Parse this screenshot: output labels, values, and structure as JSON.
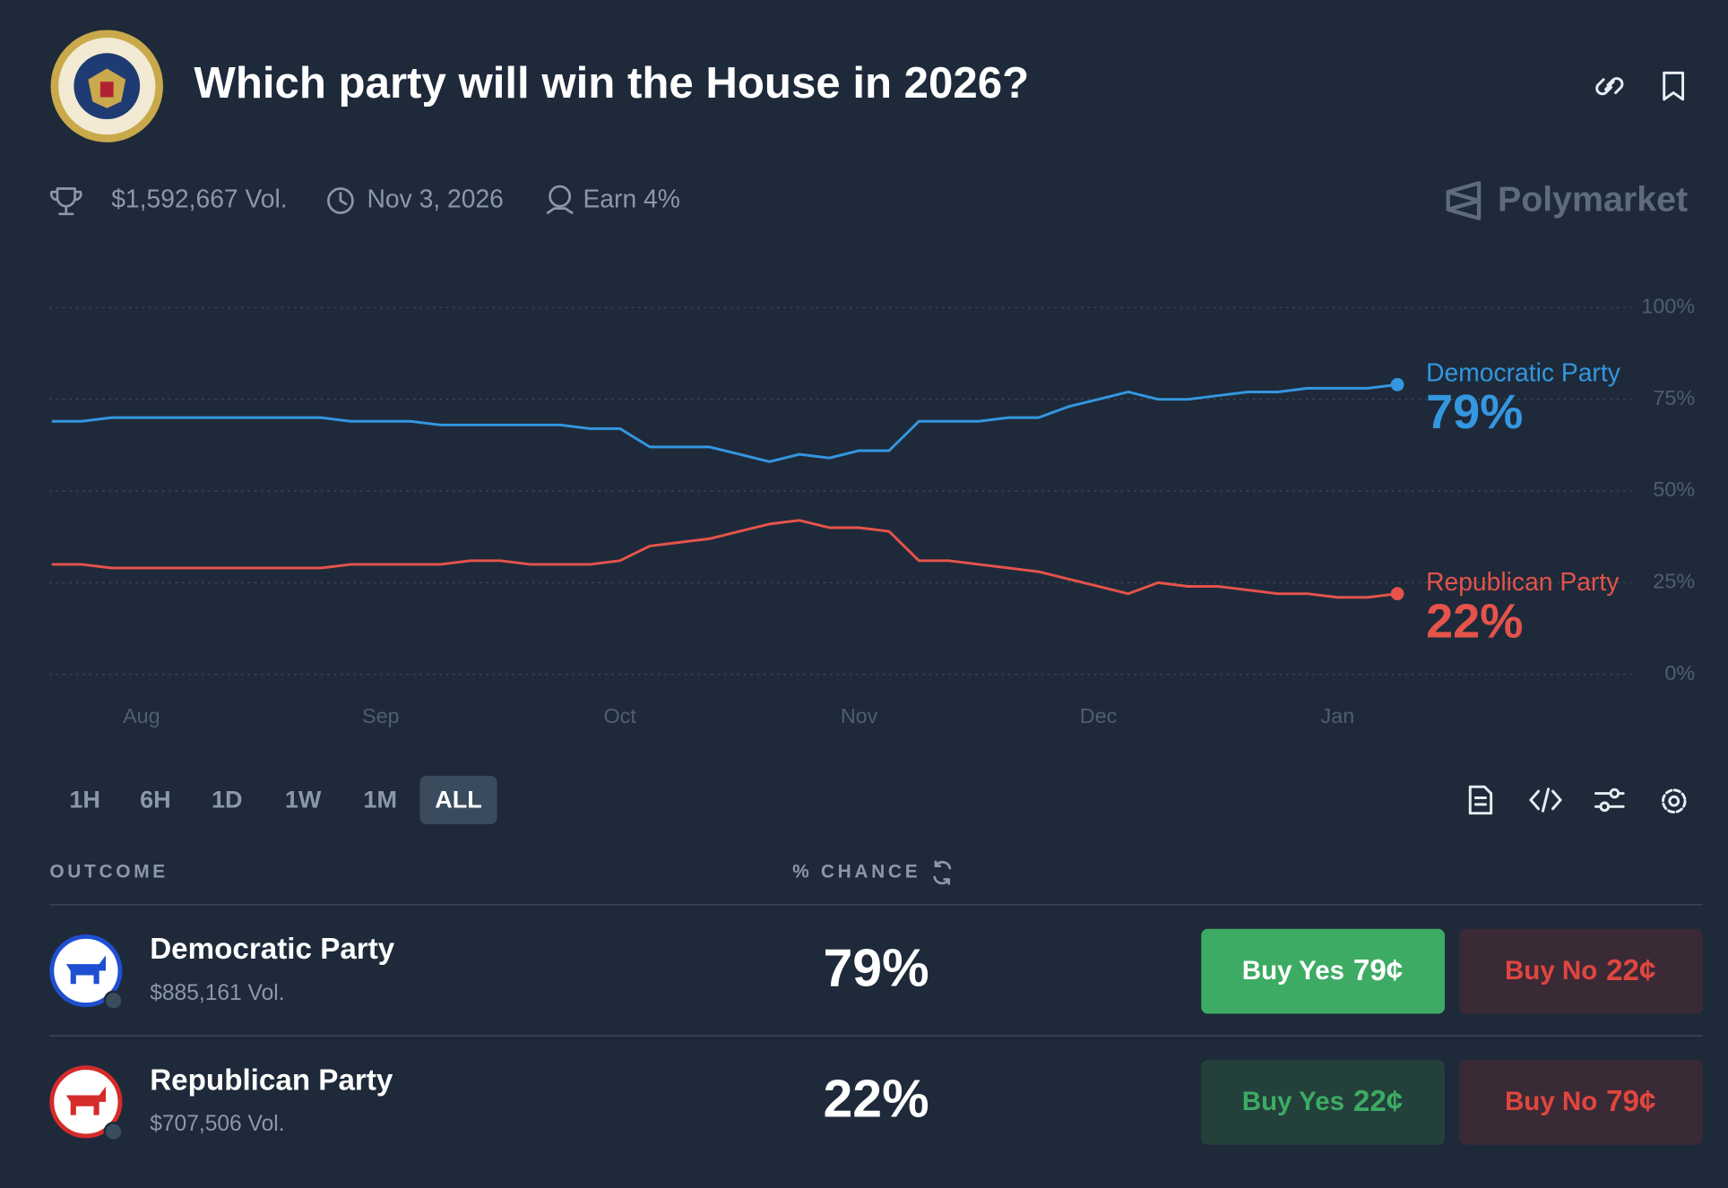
{
  "header": {
    "title": "Which party will win the House in 2026?"
  },
  "stats": {
    "volume": "$1,592,667 Vol.",
    "end_date": "Nov 3, 2026",
    "earn": "Earn 4%"
  },
  "brand": "Polymarket",
  "chart_data": {
    "type": "line",
    "categories": [
      null,
      null,
      null,
      "Aug",
      null,
      null,
      null,
      null,
      null,
      null,
      null,
      "Sep",
      null,
      null,
      null,
      null,
      null,
      null,
      null,
      "Oct",
      null,
      null,
      null,
      null,
      null,
      null,
      null,
      "Nov",
      null,
      null,
      null,
      null,
      null,
      null,
      null,
      "Dec",
      null,
      null,
      null,
      null,
      null,
      null,
      null,
      "Jan",
      null,
      null
    ],
    "series": [
      {
        "name": "Democratic Party",
        "color": "#3497e0",
        "end_label": "79%",
        "values": [
          69,
          69,
          70,
          70,
          70,
          70,
          70,
          70,
          70,
          70,
          69,
          69,
          69,
          68,
          68,
          68,
          68,
          68,
          67,
          67,
          62,
          62,
          62,
          60,
          58,
          60,
          59,
          61,
          61,
          69,
          69,
          69,
          70,
          70,
          73,
          75,
          77,
          75,
          75,
          76,
          77,
          77,
          78,
          78,
          78,
          79
        ]
      },
      {
        "name": "Republican Party",
        "color": "#e5534b",
        "end_label": "22%",
        "values": [
          30,
          30,
          29,
          29,
          29,
          29,
          29,
          29,
          29,
          29,
          30,
          30,
          30,
          30,
          31,
          31,
          30,
          30,
          30,
          31,
          35,
          36,
          37,
          39,
          41,
          42,
          40,
          40,
          39,
          31,
          31,
          30,
          29,
          28,
          26,
          24,
          22,
          25,
          24,
          24,
          23,
          22,
          22,
          21,
          21,
          22
        ]
      }
    ],
    "ylim": [
      0,
      100
    ],
    "yticks": [
      {
        "value": 0,
        "label": "0%"
      },
      {
        "value": 25,
        "label": "25%"
      },
      {
        "value": 50,
        "label": "50%"
      },
      {
        "value": 75,
        "label": "75%"
      },
      {
        "value": 100,
        "label": "100%"
      }
    ],
    "grid": true
  },
  "timeframes": {
    "options": [
      "1H",
      "6H",
      "1D",
      "1W",
      "1M",
      "ALL"
    ],
    "active": "ALL"
  },
  "table": {
    "columns": [
      "OUTCOME",
      "% CHANCE"
    ],
    "rows": [
      {
        "name": "Democratic Party",
        "volume": "$885,161 Vol.",
        "chance": "79%",
        "buy_yes": {
          "label": "Buy Yes",
          "price": "79¢"
        },
        "buy_no": {
          "label": "Buy No",
          "price": "22¢"
        }
      },
      {
        "name": "Republican Party",
        "volume": "$707,506 Vol.",
        "chance": "22%",
        "buy_yes": {
          "label": "Buy Yes",
          "price": "22¢"
        },
        "buy_no": {
          "label": "Buy No",
          "price": "79¢"
        }
      }
    ]
  }
}
